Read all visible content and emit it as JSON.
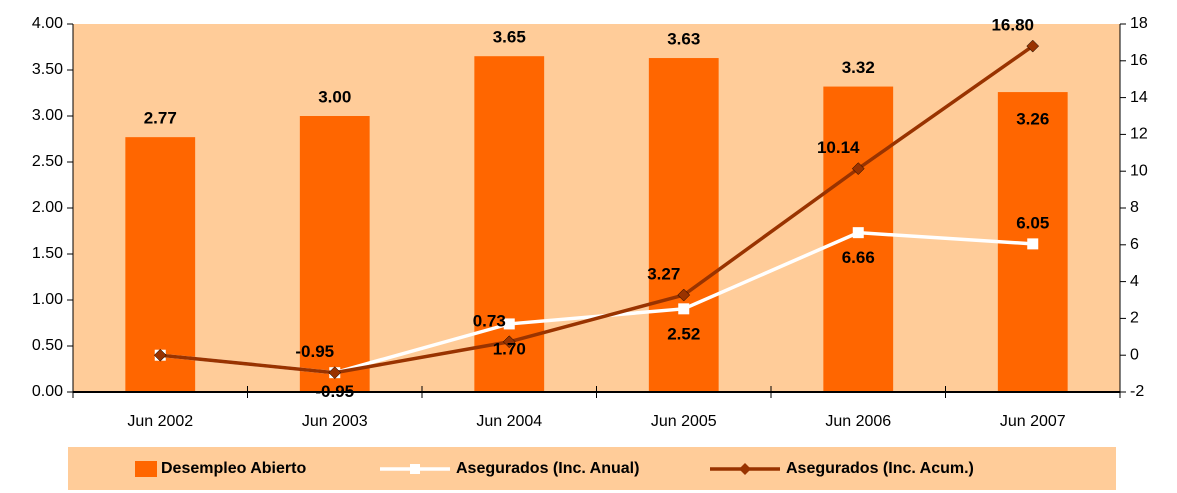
{
  "chart_data": {
    "type": "bar-line",
    "categories": [
      "Jun 2002",
      "Jun 2003",
      "Jun 2004",
      "Jun 2005",
      "Jun 2006",
      "Jun 2007"
    ],
    "ylim": [
      0,
      4
    ],
    "yticks": [
      {
        "value": 0,
        "label": "0.00"
      },
      {
        "value": 0.5,
        "label": "0.50"
      },
      {
        "value": 1,
        "label": "1.00"
      },
      {
        "value": 1.5,
        "label": "1.50"
      },
      {
        "value": 2,
        "label": "2.00"
      },
      {
        "value": 2.5,
        "label": "2.50"
      },
      {
        "value": 3,
        "label": "3.00"
      },
      {
        "value": 3.5,
        "label": "3.50"
      },
      {
        "value": 4,
        "label": "4.00"
      }
    ],
    "y2lim": [
      -2,
      18
    ],
    "y2ticks": [
      -2,
      0,
      2,
      4,
      6,
      8,
      10,
      12,
      14,
      16,
      18
    ],
    "series": [
      {
        "name": "Desempleo Abierto",
        "kind": "bar",
        "color": "#ff6600",
        "values": [
          2.77,
          3.0,
          3.65,
          3.63,
          3.32,
          3.26
        ],
        "value_labels": [
          "2.77",
          "3.00",
          "3.65",
          "3.63",
          "3.32",
          "3.26"
        ]
      },
      {
        "name": "Asegurados (Inc. Anual)",
        "kind": "line",
        "axis": "y2",
        "color": "#ffffff",
        "values": [
          0,
          -0.95,
          1.7,
          2.52,
          6.66,
          6.05
        ],
        "value_labels": [
          null,
          "-0.95",
          "1.70",
          "2.52",
          "6.66",
          "6.05"
        ]
      },
      {
        "name": "Asegurados (Inc. Acum.)",
        "kind": "line",
        "axis": "y2",
        "color": "#993300",
        "values": [
          0,
          -0.95,
          0.73,
          3.27,
          10.14,
          16.8
        ],
        "value_labels": [
          null,
          "-0.95",
          "0.73",
          "3.27",
          "10.14",
          "16.80"
        ]
      }
    ],
    "plot_background": "#ffcc99"
  }
}
